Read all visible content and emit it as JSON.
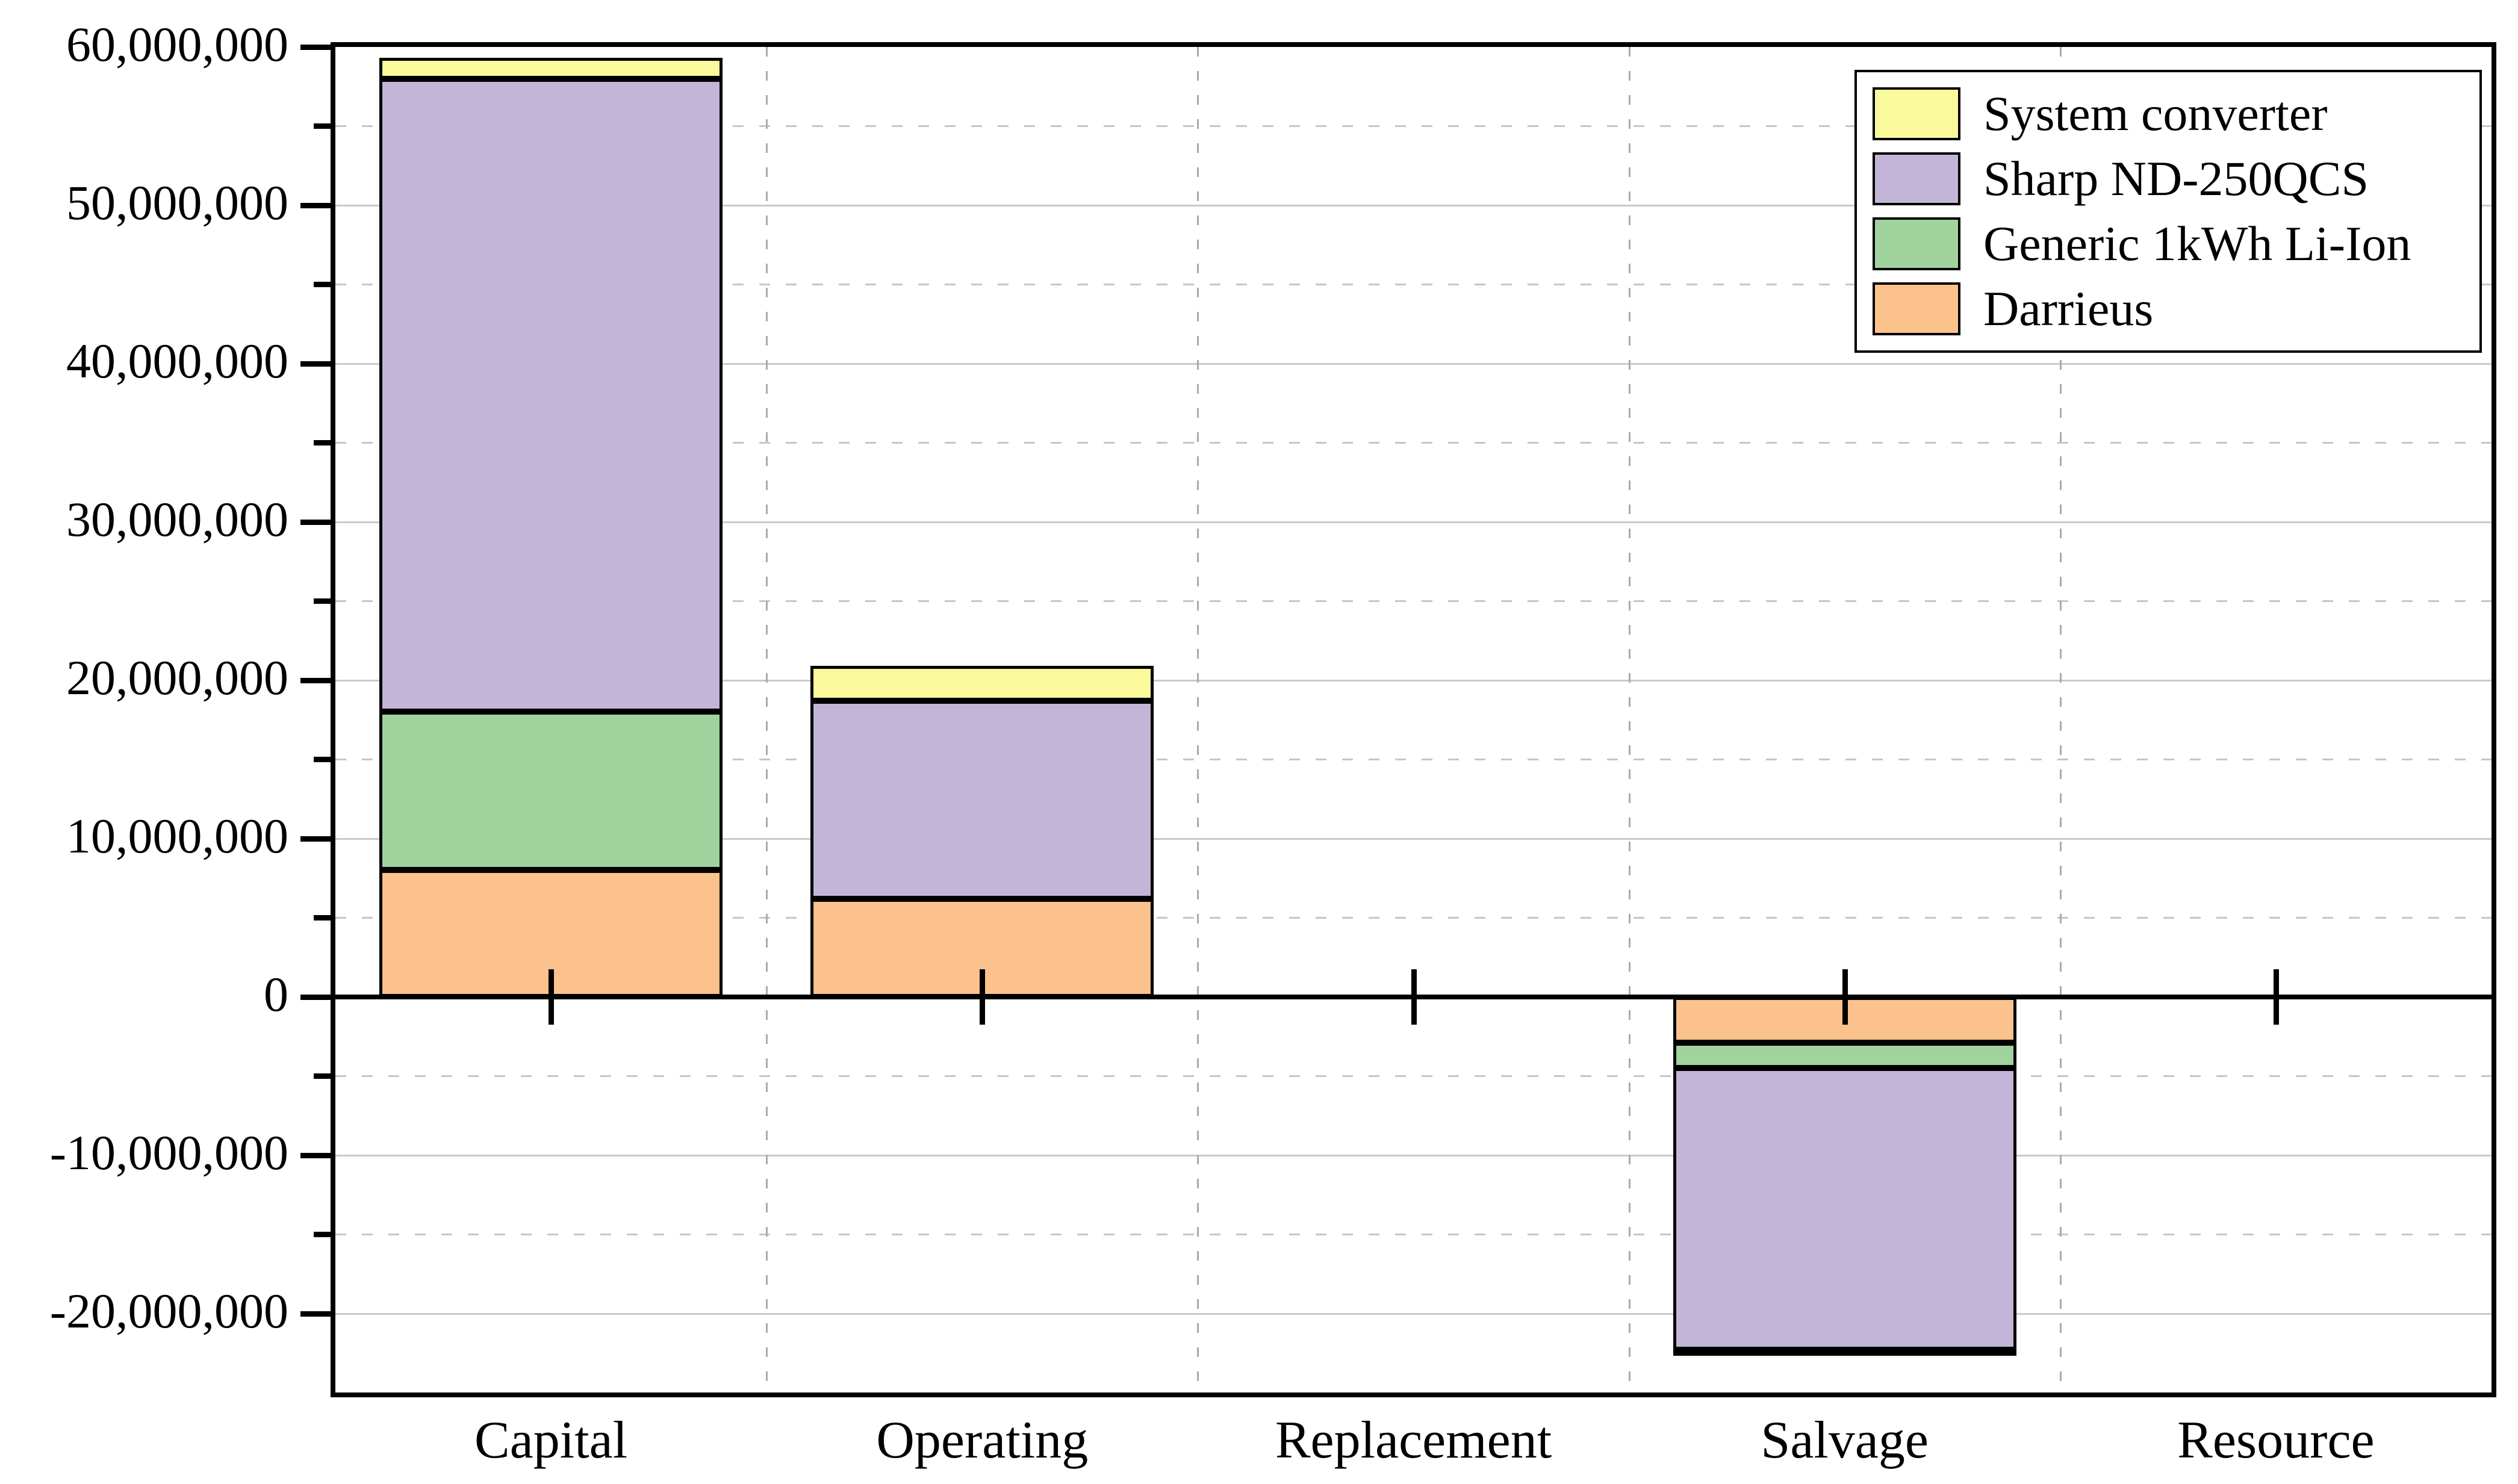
{
  "chart_data": {
    "type": "bar",
    "stacked": true,
    "title": "",
    "xlabel": "",
    "ylabel": "",
    "categories": [
      "Capital",
      "Operating",
      "Replacement",
      "Salvage",
      "Resource"
    ],
    "series": [
      {
        "name": "Darrieus",
        "color": "#FBC28D",
        "values": [
          8000000,
          6200000,
          0,
          -2900000,
          0
        ]
      },
      {
        "name": "Generic 1kWh Li-Ion",
        "color": "#A0D39E",
        "values": [
          10000000,
          0,
          0,
          -1600000,
          0
        ]
      },
      {
        "name": "Sharp ND-250QCS",
        "color": "#C3B5D8",
        "values": [
          40000000,
          12500000,
          0,
          -17800000,
          0
        ]
      },
      {
        "name": "System converter",
        "color": "#FAFA9D",
        "values": [
          1300000,
          2200000,
          0,
          -350000,
          0
        ]
      }
    ],
    "legend_order": [
      "System converter",
      "Sharp ND-250QCS",
      "Generic 1kWh Li-Ion",
      "Darrieus"
    ],
    "legend_position": "top-right",
    "ylim": [
      -25000000,
      60000000
    ],
    "y_major_step": 10000000,
    "y_minor_step": 5000000,
    "grid": {
      "h_major": "solid",
      "h_minor": "dashed",
      "v_category_boundaries": "dashed"
    },
    "y_tick_labels": [
      {
        "value": 60000000,
        "label": "60,000,000"
      },
      {
        "value": 50000000,
        "label": "50,000,000"
      },
      {
        "value": 40000000,
        "label": "40,000,000"
      },
      {
        "value": 30000000,
        "label": "30,000,000"
      },
      {
        "value": 20000000,
        "label": "20,000,000"
      },
      {
        "value": 10000000,
        "label": "10,000,000"
      },
      {
        "value": 0,
        "label": "0"
      },
      {
        "value": -10000000,
        "label": "-10,000,000"
      },
      {
        "value": -20000000,
        "label": "-20,000,000"
      }
    ]
  }
}
